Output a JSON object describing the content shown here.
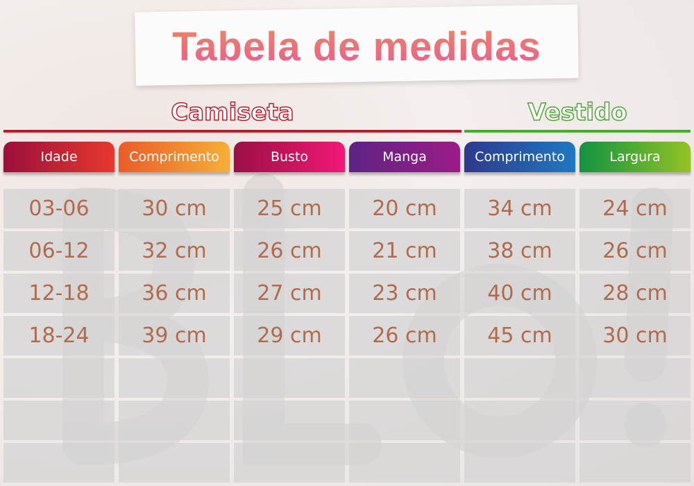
{
  "title": "Tabela de medidas",
  "sections": {
    "camiseta": "Camiseta",
    "vestido": "Vestido"
  },
  "colors": {
    "camiseta_line": "#b2202e",
    "vestido_line": "#4ea733",
    "cell_text": "#b06a4c"
  },
  "headers": [
    {
      "label": "Idade",
      "gradient": [
        "#9a0f3a",
        "#e8382e"
      ]
    },
    {
      "label": "Comprimento",
      "gradient": [
        "#ea5d28",
        "#f7ae38"
      ]
    },
    {
      "label": "Busto",
      "gradient": [
        "#9c0f43",
        "#f21877"
      ]
    },
    {
      "label": "Manga",
      "gradient": [
        "#5e2383",
        "#9c1c88"
      ]
    },
    {
      "label": "Comprimento",
      "gradient": [
        "#2d3a8b",
        "#1f78c2"
      ]
    },
    {
      "label": "Largura",
      "gradient": [
        "#129340",
        "#93c225"
      ]
    }
  ],
  "rows": [
    [
      "03-06",
      "30 cm",
      "25 cm",
      "20 cm",
      "34 cm",
      "24 cm"
    ],
    [
      "06-12",
      "32 cm",
      "26 cm",
      "21 cm",
      "38 cm",
      "26 cm"
    ],
    [
      "12-18",
      "36 cm",
      "27 cm",
      "23 cm",
      "40 cm",
      "28 cm"
    ],
    [
      "18-24",
      "39 cm",
      "29 cm",
      "26 cm",
      "45 cm",
      "30 cm"
    ],
    [
      "",
      "",
      "",
      "",
      "",
      ""
    ],
    [
      "",
      "",
      "",
      "",
      "",
      ""
    ],
    [
      "",
      "",
      "",
      "",
      "",
      ""
    ]
  ]
}
